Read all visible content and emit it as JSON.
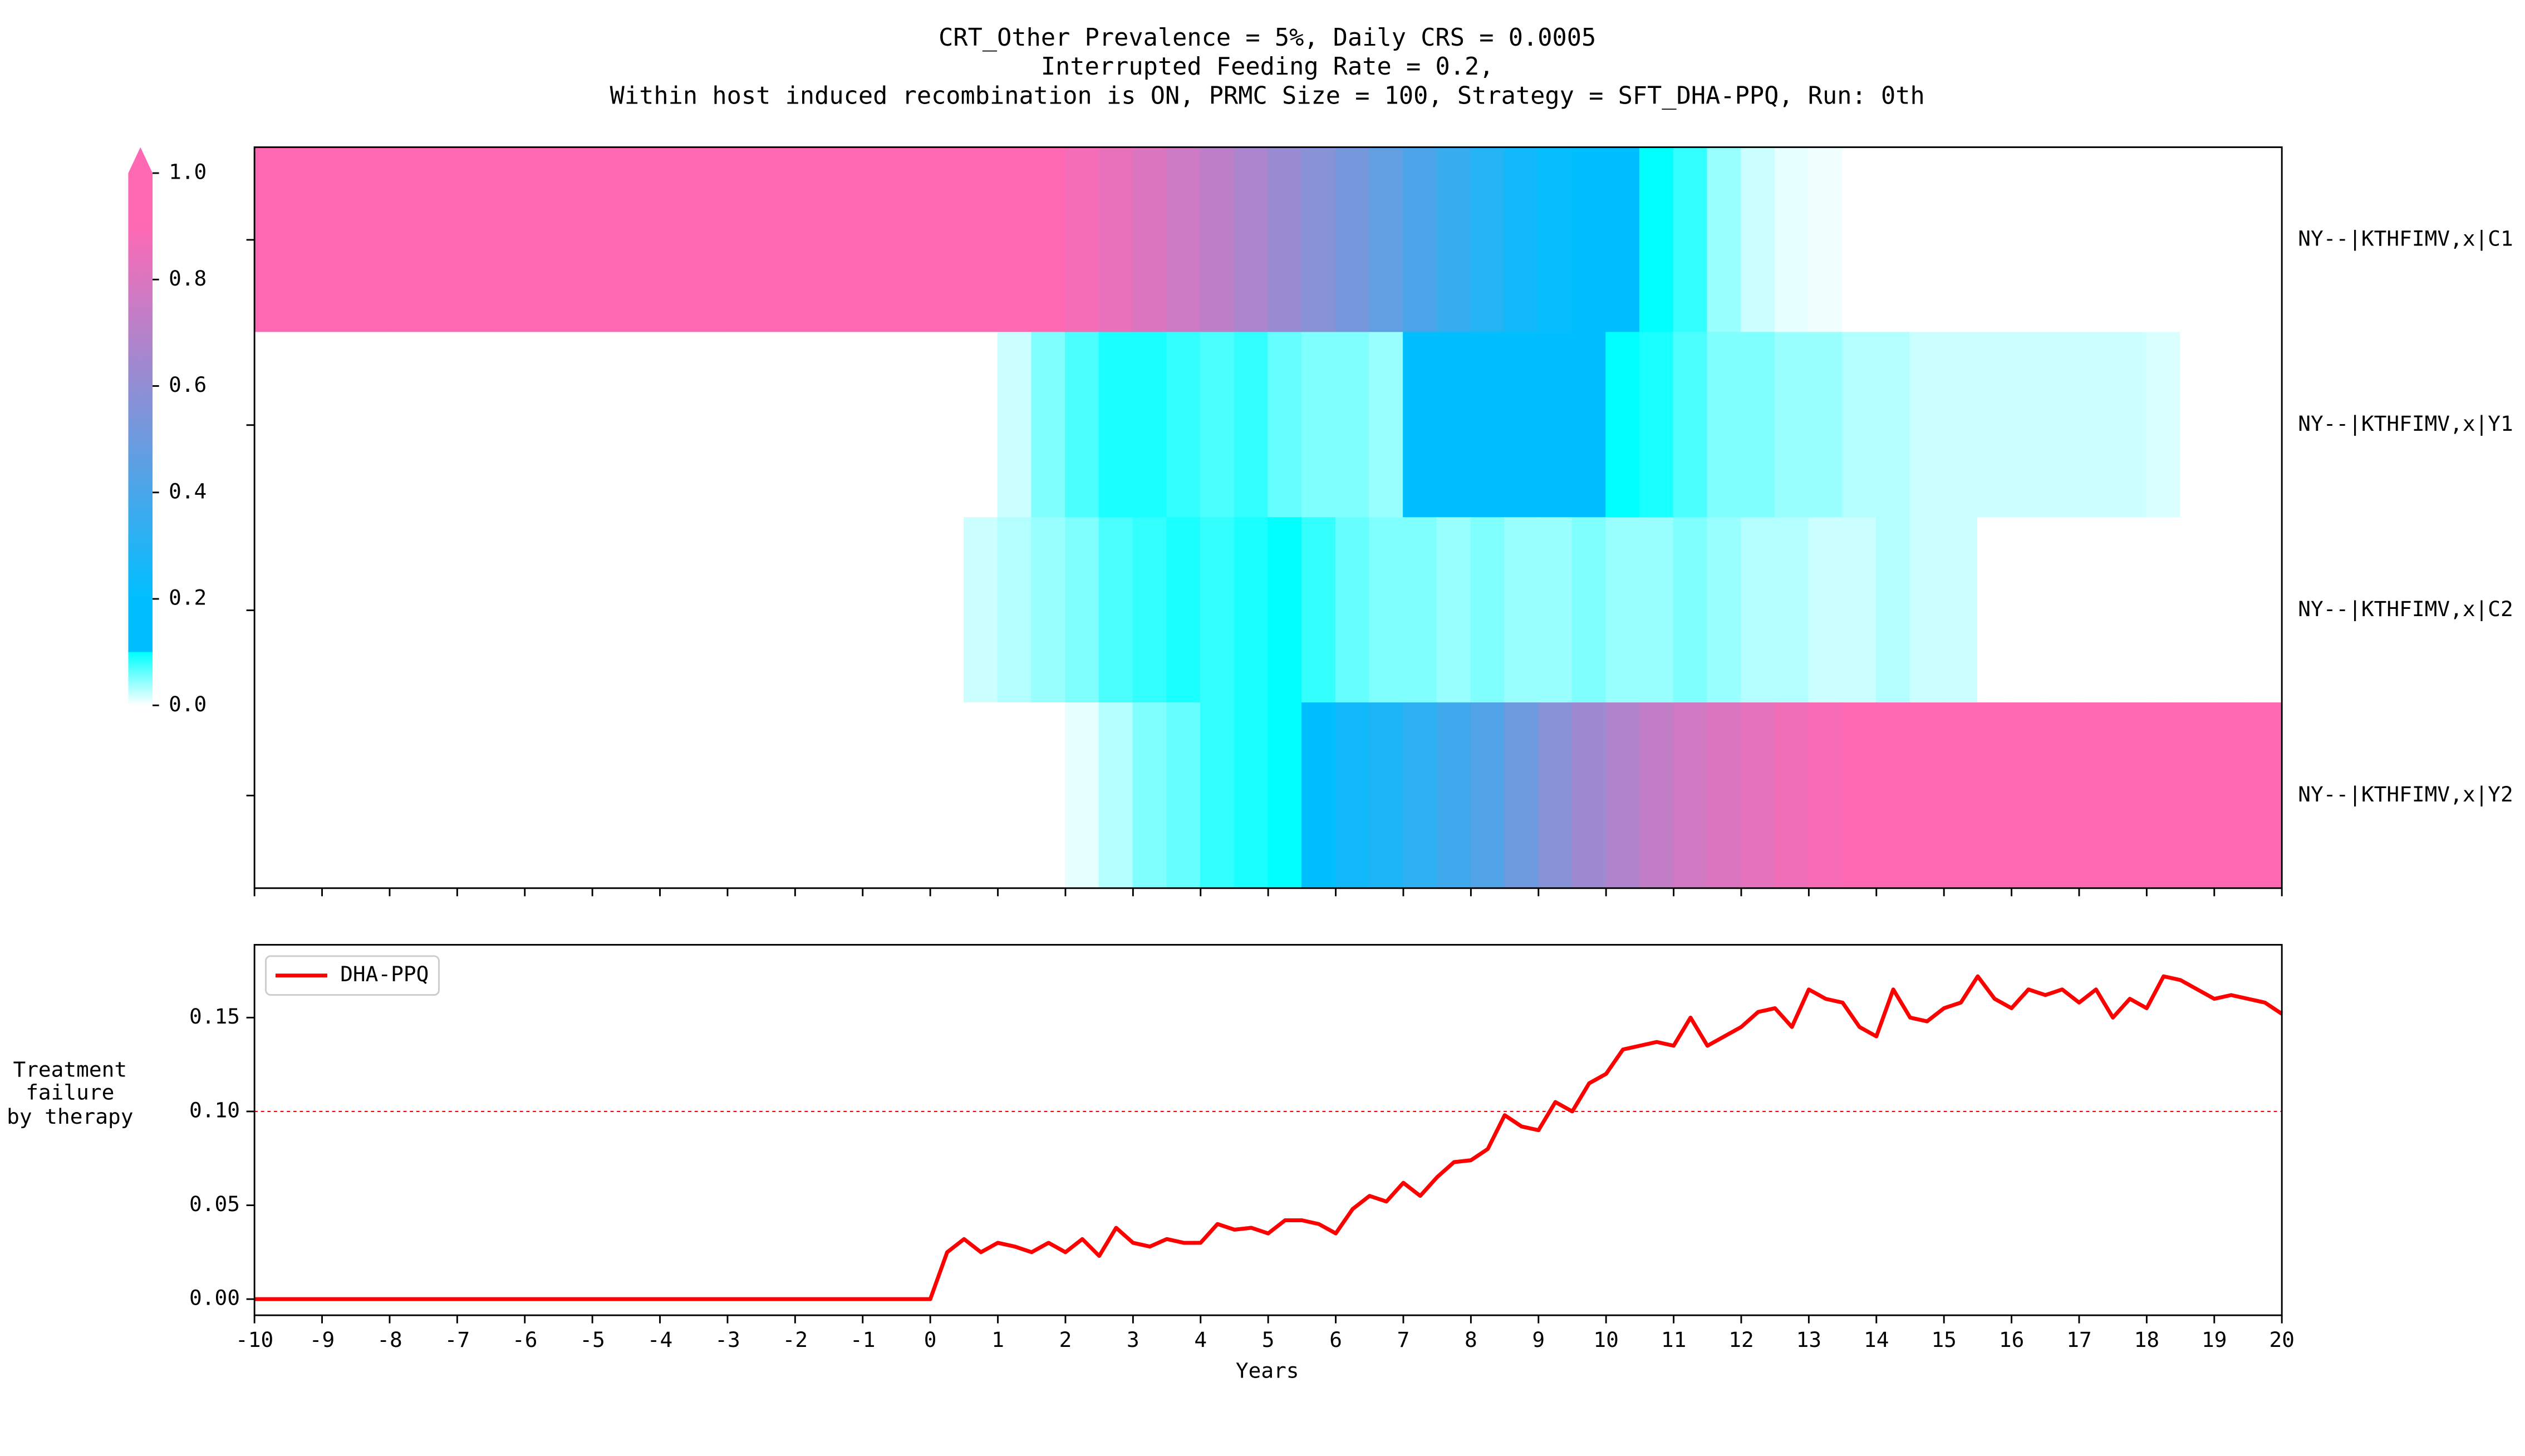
{
  "chart_data": [
    {
      "type": "heatmap",
      "title": [
        "CRT_Other Prevalence = 5%, Daily CRS = 0.0005",
        "Interrupted Feeding Rate = 0.2,",
        "Within host induced recombination is ON, PRMC Size = 100, Strategy = SFT_DHA-PPQ, Run: 0th"
      ],
      "categories": [
        "NY--|KTHFIMV,x|C1",
        "NY--|KTHFIMV,x|Y1",
        "NY--|KTHFIMV,x|C2",
        "NY--|KTHFIMV,x|Y2"
      ],
      "bins": [
        -10,
        -9.5,
        -9,
        -8.5,
        -8,
        -7.5,
        -7,
        -6.5,
        -6,
        -5.5,
        -5,
        -4.5,
        -4,
        -3.5,
        -3,
        -2.5,
        -2,
        -1.5,
        -1,
        -0.5,
        0,
        0.5,
        1,
        1.5,
        2,
        2.5,
        3,
        3.5,
        4,
        4.5,
        5,
        5.5,
        6,
        6.5,
        7,
        7.5,
        8,
        8.5,
        9,
        9.5,
        10,
        10.5,
        11,
        11.5,
        12,
        12.5,
        13,
        13.5,
        14,
        14.5,
        15,
        15.5,
        16,
        16.5,
        17,
        17.5,
        18,
        18.5,
        19,
        19.5,
        20
      ],
      "rows": [
        [
          1,
          1,
          1,
          1,
          1,
          1,
          1,
          1,
          1,
          1,
          1,
          1,
          1,
          1,
          1,
          1,
          1,
          1,
          1,
          1,
          0.98,
          0.95,
          0.92,
          0.9,
          0.87,
          0.84,
          0.8,
          0.76,
          0.72,
          0.67,
          0.62,
          0.57,
          0.52,
          0.47,
          0.41,
          0.35,
          0.3,
          0.25,
          0.22,
          0.2,
          0.2,
          0.1,
          0.08,
          0.04,
          0.02,
          0.01,
          0.005,
          0,
          0,
          0,
          0,
          0,
          0,
          0,
          0,
          0,
          0,
          0,
          0,
          0
        ],
        [
          0,
          0,
          0,
          0,
          0,
          0,
          0,
          0,
          0,
          0,
          0,
          0,
          0,
          0,
          0,
          0,
          0,
          0,
          0,
          0,
          0,
          0,
          0.02,
          0.05,
          0.07,
          0.09,
          0.09,
          0.08,
          0.07,
          0.08,
          0.06,
          0.05,
          0.05,
          0.04,
          0.2,
          0.2,
          0.2,
          0.2,
          0.2,
          0.2,
          0.1,
          0.09,
          0.07,
          0.05,
          0.05,
          0.04,
          0.04,
          0.03,
          0.03,
          0.02,
          0.02,
          0.02,
          0.02,
          0.02,
          0.02,
          0.02,
          0.015,
          0,
          0,
          0
        ],
        [
          0,
          0,
          0,
          0,
          0,
          0,
          0,
          0,
          0,
          0,
          0,
          0,
          0,
          0,
          0,
          0,
          0,
          0,
          0,
          0,
          0,
          0.02,
          0.03,
          0.04,
          0.05,
          0.07,
          0.08,
          0.09,
          0.08,
          0.09,
          0.1,
          0.08,
          0.06,
          0.05,
          0.05,
          0.04,
          0.05,
          0.04,
          0.04,
          0.05,
          0.04,
          0.04,
          0.05,
          0.04,
          0.03,
          0.03,
          0.02,
          0.02,
          0.03,
          0.02,
          0.02,
          0,
          0,
          0,
          0,
          0,
          0,
          0,
          0,
          0
        ],
        [
          0,
          0,
          0,
          0,
          0,
          0,
          0,
          0,
          0,
          0,
          0,
          0,
          0,
          0,
          0,
          0,
          0,
          0,
          0,
          0,
          0,
          0,
          0,
          0,
          0.01,
          0.03,
          0.05,
          0.06,
          0.08,
          0.09,
          0.1,
          0.2,
          0.25,
          0.28,
          0.32,
          0.37,
          0.42,
          0.5,
          0.57,
          0.63,
          0.68,
          0.73,
          0.77,
          0.8,
          0.83,
          0.86,
          0.88,
          0.9,
          0.92,
          0.94,
          0.96,
          0.98,
          1,
          1,
          1,
          1,
          1,
          1,
          1,
          1
        ]
      ],
      "colormap": [
        {
          "value": 0,
          "color": "#ffffff"
        },
        {
          "value": 0.1,
          "color": "#00ffff"
        },
        {
          "value": 0.1,
          "color": "#00bfff"
        },
        {
          "value": 0.2,
          "color": "#00bfff"
        },
        {
          "value": 0.9,
          "color": "#ff69b4"
        },
        {
          "value": 1,
          "color": "#ff69b4"
        }
      ],
      "colorbar": {
        "lim": [
          0,
          1
        ],
        "extend": "max",
        "ticks": [
          {
            "value": 0,
            "label": "0.0"
          },
          {
            "value": 0.2,
            "label": "0.2"
          },
          {
            "value": 0.4,
            "label": "0.4"
          },
          {
            "value": 0.6,
            "label": "0.6"
          },
          {
            "value": 0.8,
            "label": "0.8"
          },
          {
            "value": 1,
            "label": "1.0"
          }
        ]
      },
      "xlim": [
        -10,
        20
      ],
      "xticks": [
        -10,
        -9,
        -8,
        -7,
        -6,
        -5,
        -4,
        -3,
        -2,
        -1,
        0,
        1,
        2,
        3,
        4,
        5,
        6,
        7,
        8,
        9,
        10,
        11,
        12,
        13,
        14,
        15,
        16,
        17,
        18,
        19,
        20
      ]
    },
    {
      "type": "line",
      "ylabel": [
        "Treatment",
        "failure",
        "by therapy"
      ],
      "xlabel": "Years",
      "x": [
        -10,
        0,
        0.25,
        0.5,
        0.75,
        1,
        1.25,
        1.5,
        1.75,
        2,
        2.25,
        2.5,
        2.75,
        3,
        3.25,
        3.5,
        3.75,
        4,
        4.25,
        4.5,
        4.75,
        5,
        5.25,
        5.5,
        5.75,
        6,
        6.25,
        6.5,
        6.75,
        7,
        7.25,
        7.5,
        7.75,
        8,
        8.25,
        8.5,
        8.75,
        9,
        9.25,
        9.5,
        9.75,
        10,
        10.25,
        10.5,
        10.75,
        11,
        11.25,
        11.5,
        11.75,
        12,
        12.25,
        12.5,
        12.75,
        13,
        13.25,
        13.5,
        13.75,
        14,
        14.25,
        14.5,
        14.75,
        15,
        15.25,
        15.5,
        15.75,
        16,
        16.25,
        16.5,
        16.75,
        17,
        17.25,
        17.5,
        17.75,
        18,
        18.25,
        18.5,
        18.75,
        19,
        19.25,
        19.5,
        19.75,
        20
      ],
      "series": [
        {
          "name": "DHA-PPQ",
          "color": "#ff0000",
          "values": [
            0,
            0,
            0.025,
            0.032,
            0.025,
            0.03,
            0.028,
            0.025,
            0.03,
            0.025,
            0.032,
            0.023,
            0.038,
            0.03,
            0.028,
            0.032,
            0.03,
            0.03,
            0.04,
            0.037,
            0.038,
            0.035,
            0.042,
            0.042,
            0.04,
            0.035,
            0.048,
            0.055,
            0.052,
            0.062,
            0.055,
            0.065,
            0.073,
            0.074,
            0.08,
            0.098,
            0.092,
            0.09,
            0.105,
            0.1,
            0.115,
            0.12,
            0.133,
            0.135,
            0.137,
            0.135,
            0.15,
            0.135,
            0.14,
            0.145,
            0.153,
            0.155,
            0.145,
            0.165,
            0.16,
            0.158,
            0.145,
            0.14,
            0.165,
            0.15,
            0.148,
            0.155,
            0.158,
            0.172,
            0.16,
            0.155,
            0.165,
            0.162,
            0.165,
            0.158,
            0.165,
            0.15,
            0.16,
            0.155,
            0.172,
            0.17,
            0.165,
            0.16,
            0.162,
            0.16,
            0.158,
            0.152
          ]
        }
      ],
      "hline": 0.1,
      "hline_color": "#ff0000",
      "legend": "upper left",
      "xlim": [
        -10,
        20
      ],
      "xticks": [
        -10,
        -9,
        -8,
        -7,
        -6,
        -5,
        -4,
        -3,
        -2,
        -1,
        0,
        1,
        2,
        3,
        4,
        5,
        6,
        7,
        8,
        9,
        10,
        11,
        12,
        13,
        14,
        15,
        16,
        17,
        18,
        19,
        20
      ],
      "ylim": [
        -0.0086,
        0.1888
      ],
      "yticks": [
        {
          "value": 0,
          "label": "0.00"
        },
        {
          "value": 0.05,
          "label": "0.05"
        },
        {
          "value": 0.1,
          "label": "0.10"
        },
        {
          "value": 0.15,
          "label": "0.15"
        }
      ]
    }
  ]
}
